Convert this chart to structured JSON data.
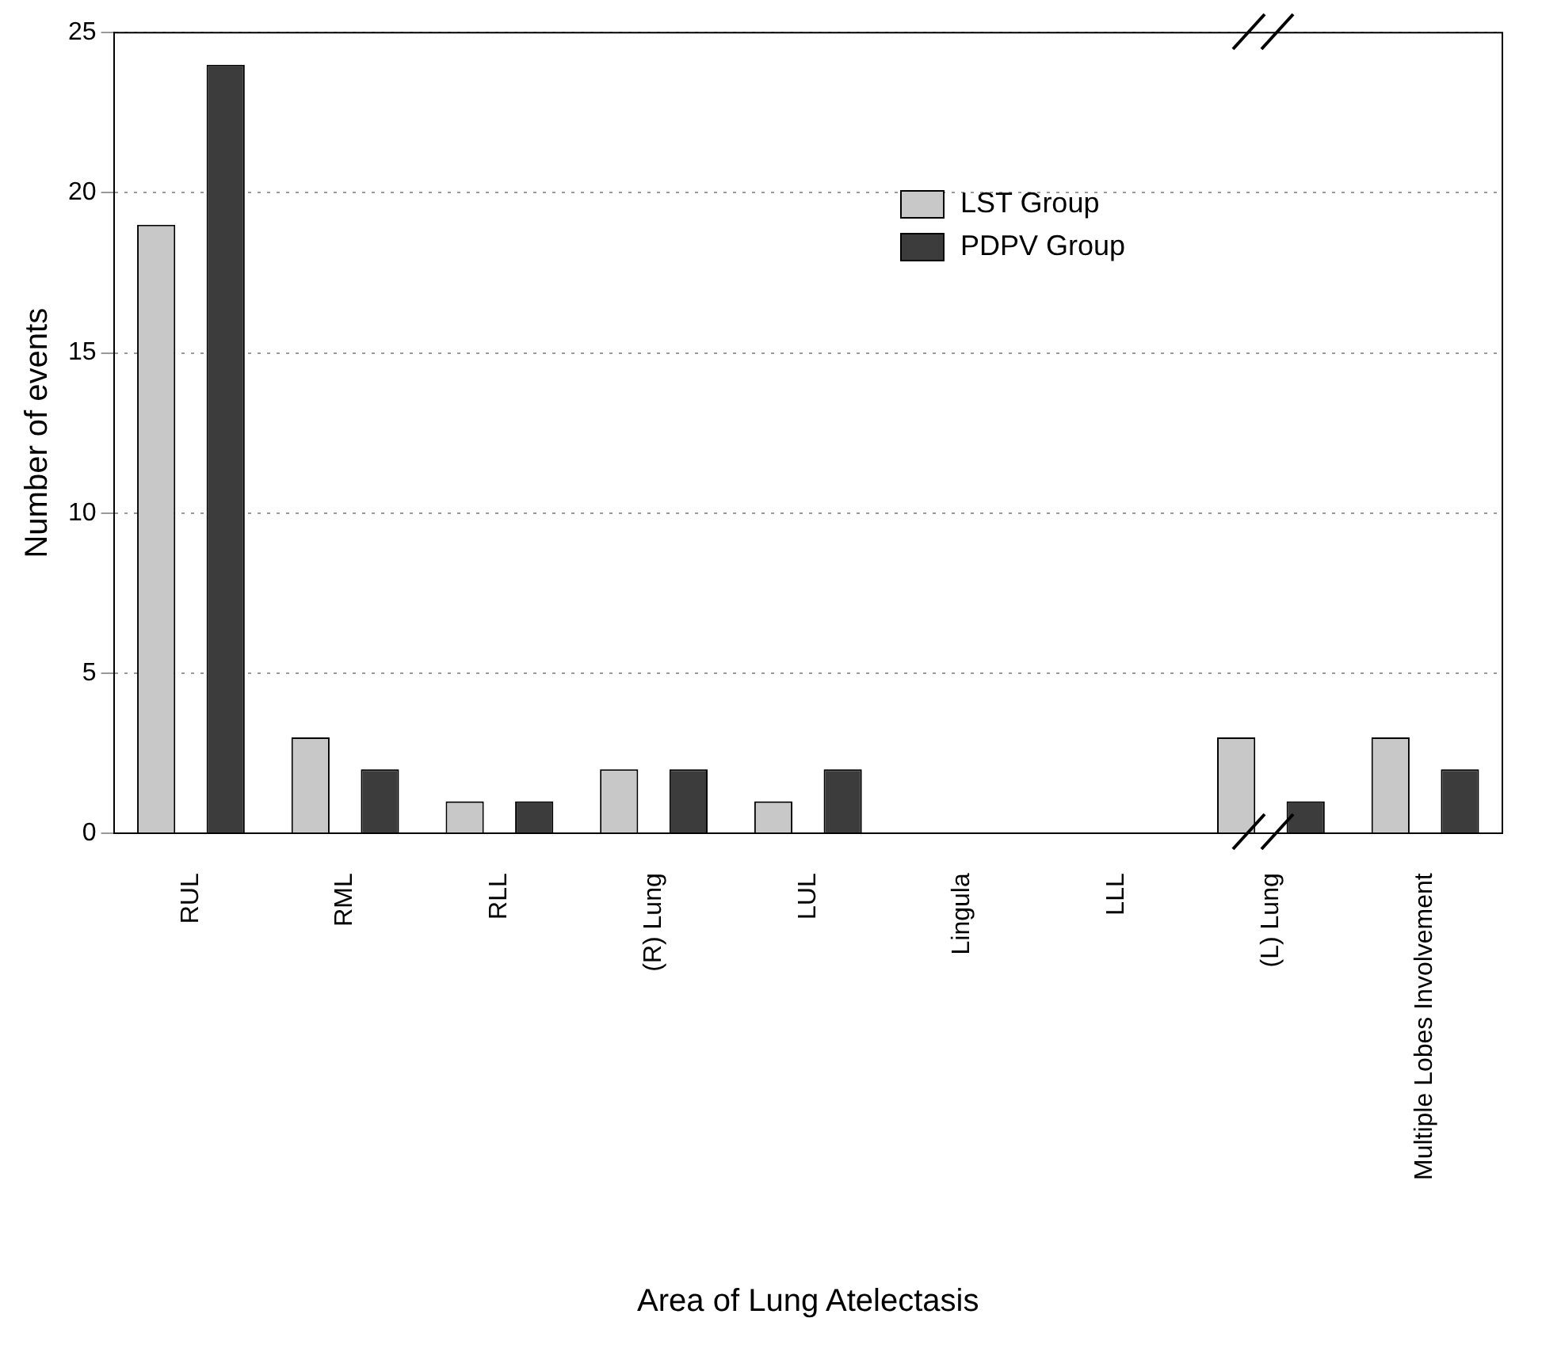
{
  "chart_data": {
    "type": "bar",
    "xlabel": "Area of Lung Atelectasis",
    "ylabel": "Number of events",
    "categories": [
      "RUL",
      "RML",
      "RLL",
      "(R) Lung",
      "LUL",
      "Lingula",
      "LLL",
      "(L) Lung",
      "Multiple Lobes Involvement"
    ],
    "series": [
      {
        "name": "LST Group",
        "color": "#c8c8c8",
        "values": [
          19,
          3,
          1,
          2,
          1,
          0,
          0,
          3,
          3
        ]
      },
      {
        "name": "PDPV Group",
        "color": "#3c3c3c",
        "values": [
          24,
          2,
          1,
          2,
          2,
          0,
          0,
          1,
          2
        ]
      }
    ],
    "ylim": [
      0,
      25
    ],
    "yticks": [
      0,
      5,
      10,
      15,
      20,
      25
    ],
    "grid": "y",
    "legend": "top right"
  }
}
